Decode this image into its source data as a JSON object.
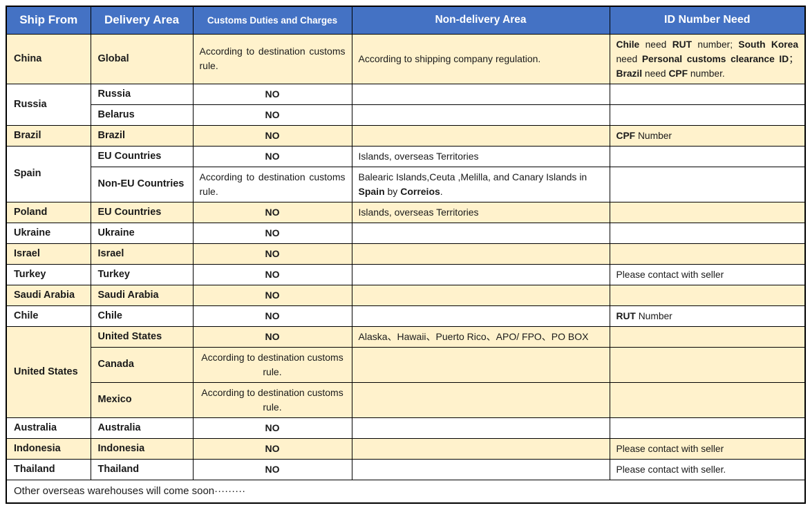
{
  "colors": {
    "header_bg": "#4472C4",
    "header_text": "#FFFFFF",
    "row_shade_bg": "#FFF2CC",
    "border": "#000000",
    "text": "#1A1A1A",
    "muted_text": "#595959"
  },
  "table": {
    "columns": [
      {
        "label": "Ship From"
      },
      {
        "label": "Delivery Area"
      },
      {
        "label": "Customs Duties and Charges"
      },
      {
        "label": "Non-delivery Area"
      },
      {
        "label": "ID Number Need"
      }
    ],
    "groups": [
      {
        "ship_from": "China",
        "shaded": true,
        "rows": [
          {
            "delivery_area": "Global",
            "customs": {
              "text": "According to destination customs rule.",
              "align": "justify"
            },
            "non_delivery": "According to shipping company regulation.",
            "id_number": {
              "align": "justify",
              "segments": [
                {
                  "t": "Chile",
                  "b": true
                },
                {
                  "t": " need "
                },
                {
                  "t": "RUT",
                  "b": true
                },
                {
                  "t": " number; "
                },
                {
                  "t": "South Korea",
                  "b": true
                },
                {
                  "t": " need "
                },
                {
                  "t": "Personal customs clearance ID",
                  "b": true
                },
                {
                  "t": "；"
                },
                {
                  "t": "Brazil",
                  "b": true
                },
                {
                  "t": " need "
                },
                {
                  "t": "CPF",
                  "b": true
                },
                {
                  "t": " number."
                }
              ]
            }
          }
        ]
      },
      {
        "ship_from": "Russia",
        "shaded": false,
        "rows": [
          {
            "delivery_area": "Russia",
            "customs": "NO"
          },
          {
            "delivery_area": "Belarus",
            "delivery_muted": true,
            "customs": "NO"
          }
        ]
      },
      {
        "ship_from": "Brazil",
        "shaded": true,
        "rows": [
          {
            "delivery_area": "Brazil",
            "customs": "NO",
            "id_number": {
              "segments": [
                {
                  "t": "CPF",
                  "b": true
                },
                {
                  "t": " Number"
                }
              ]
            }
          }
        ]
      },
      {
        "ship_from": "Spain",
        "shaded": false,
        "rows": [
          {
            "delivery_area": "EU Countries",
            "customs": "NO",
            "non_delivery": "Islands, overseas Territories"
          },
          {
            "delivery_area": "Non-EU Countries",
            "customs": {
              "text": "According to destination customs rule.",
              "align": "justify"
            },
            "non_delivery": {
              "segments": [
                {
                  "t": "Balearic Islands,Ceuta ,Melilla, and Canary Islands in "
                },
                {
                  "t": "Spain",
                  "b": true
                },
                {
                  "t": " by "
                },
                {
                  "t": "Correios",
                  "b": true
                },
                {
                  "t": "."
                }
              ]
            }
          }
        ]
      },
      {
        "ship_from": "Poland",
        "shaded": true,
        "rows": [
          {
            "delivery_area": "EU Countries",
            "customs": "NO",
            "non_delivery": "Islands, overseas Territories"
          }
        ]
      },
      {
        "ship_from": "Ukraine",
        "shaded": false,
        "rows": [
          {
            "delivery_area": "Ukraine",
            "customs": "NO"
          }
        ]
      },
      {
        "ship_from": "Israel",
        "shaded": true,
        "rows": [
          {
            "delivery_area": "Israel",
            "customs": "NO"
          }
        ]
      },
      {
        "ship_from": "Turkey",
        "shaded": false,
        "rows": [
          {
            "delivery_area": "Turkey",
            "customs": "NO",
            "id_number": "Please contact with seller"
          }
        ]
      },
      {
        "ship_from": "Saudi Arabia",
        "ship_muted": true,
        "shaded": true,
        "rows": [
          {
            "delivery_area": "Saudi Arabia",
            "delivery_muted": true,
            "customs": "NO"
          }
        ]
      },
      {
        "ship_from": "Chile",
        "shaded": false,
        "rows": [
          {
            "delivery_area": "Chile",
            "customs": "NO",
            "id_number": {
              "segments": [
                {
                  "t": "RUT",
                  "b": true
                },
                {
                  "t": " Number"
                }
              ]
            }
          }
        ]
      },
      {
        "ship_from": "United States",
        "shaded": true,
        "rows": [
          {
            "delivery_area": "United States",
            "customs": "NO",
            "non_delivery": "Alaska、Hawaii、Puerto Rico、APO/ FPO、PO BOX"
          },
          {
            "delivery_area": "Canada",
            "customs": {
              "text": "According to destination customs rule.",
              "align": "center"
            }
          },
          {
            "delivery_area": "Mexico",
            "customs": {
              "text": "According to destination customs rule.",
              "align": "center"
            }
          }
        ]
      },
      {
        "ship_from": "Australia",
        "shaded": false,
        "rows": [
          {
            "delivery_area": "Australia",
            "customs": "NO"
          }
        ]
      },
      {
        "ship_from": "Indonesia",
        "shaded": true,
        "rows": [
          {
            "delivery_area": "Indonesia",
            "customs": "NO",
            "id_number": "Please contact with seller"
          }
        ]
      },
      {
        "ship_from": "Thailand",
        "shaded": false,
        "rows": [
          {
            "delivery_area": "Thailand",
            "customs": "NO",
            "id_number": "Please contact with seller."
          }
        ]
      }
    ],
    "footer": "Other overseas warehouses will come soon·········"
  }
}
